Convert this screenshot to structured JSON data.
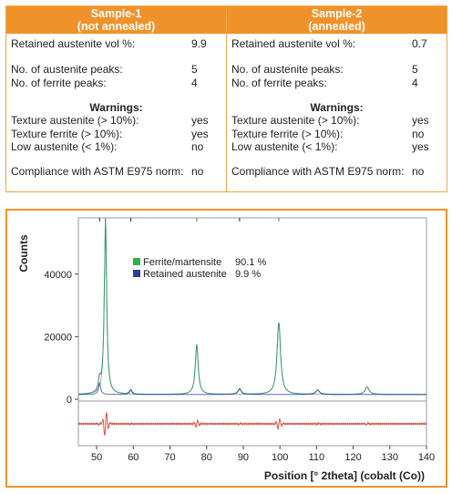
{
  "samples": [
    {
      "title": "Sample-1",
      "subtitle": "(not annealed)",
      "retained_label": "Retained austenite vol %:",
      "retained_value": "9.9",
      "aust_peaks_label": "No. of austenite peaks:",
      "aust_peaks_value": "5",
      "ferr_peaks_label": "No. of ferrite peaks:",
      "ferr_peaks_value": "4",
      "warnings_title": "Warnings:",
      "tex_aust_label": "Texture austenite (> 10%):",
      "tex_aust_value": "yes",
      "tex_ferr_label": "Texture ferrite (> 10%):",
      "tex_ferr_value": "yes",
      "low_aust_label": "Low austenite (< 1%):",
      "low_aust_value": "no",
      "compliance_label": "Compliance with ASTM E975 norm:",
      "compliance_value": "no"
    },
    {
      "title": "Sample-2",
      "subtitle": "(annealed)",
      "retained_label": "Retained austenite vol %:",
      "retained_value": "0.7",
      "aust_peaks_label": "No. of austenite peaks:",
      "aust_peaks_value": "5",
      "ferr_peaks_label": "No. of ferrite peaks:",
      "ferr_peaks_value": "4",
      "warnings_title": "Warnings:",
      "tex_aust_label": "Texture austenite (> 10%):",
      "tex_aust_value": "yes",
      "tex_ferr_label": "Texture ferrite (> 10%):",
      "tex_ferr_value": "no",
      "low_aust_label": "Low austenite (< 1%):",
      "low_aust_value": "yes",
      "compliance_label": "Compliance with ASTM E975 norm:",
      "compliance_value": "no"
    }
  ],
  "colors": {
    "header_bg": "#f0922a",
    "ferrite": "#2db34a",
    "austenite": "#2b3f9a",
    "difference": "#e0453a"
  },
  "chart_data": {
    "type": "line",
    "title": "",
    "xlabel": "Position [° 2theta] (cobalt (Co))",
    "ylabel": "Counts",
    "xlim": [
      45,
      140
    ],
    "ylim": [
      0,
      58000
    ],
    "x_ticks": [
      50,
      60,
      70,
      80,
      90,
      100,
      110,
      120,
      130,
      140
    ],
    "y_ticks": [
      0,
      20000,
      40000
    ],
    "legend": [
      {
        "name": "Ferrite/martensite",
        "value": "90.1 %",
        "color": "#2db34a"
      },
      {
        "name": "Retained austenite",
        "value": "9.9 %",
        "color": "#2b3f9a"
      }
    ],
    "baseline": 1500,
    "peaks": [
      {
        "x": 50.8,
        "y": 5200,
        "phase": "austenite"
      },
      {
        "x": 52.4,
        "y": 57000,
        "phase": "ferrite"
      },
      {
        "x": 59.3,
        "y": 2900,
        "phase": "austenite"
      },
      {
        "x": 77.3,
        "y": 17500,
        "phase": "ferrite"
      },
      {
        "x": 89.0,
        "y": 3300,
        "phase": "austenite"
      },
      {
        "x": 99.7,
        "y": 24500,
        "phase": "ferrite"
      },
      {
        "x": 110.3,
        "y": 2900,
        "phase": "austenite"
      },
      {
        "x": 123.8,
        "y": 3900,
        "phase": "ferrite"
      }
    ],
    "ferrite_markers": [
      52.4,
      77.3,
      99.7
    ],
    "austenite_markers": [
      50.8,
      59.3,
      89.0
    ]
  }
}
